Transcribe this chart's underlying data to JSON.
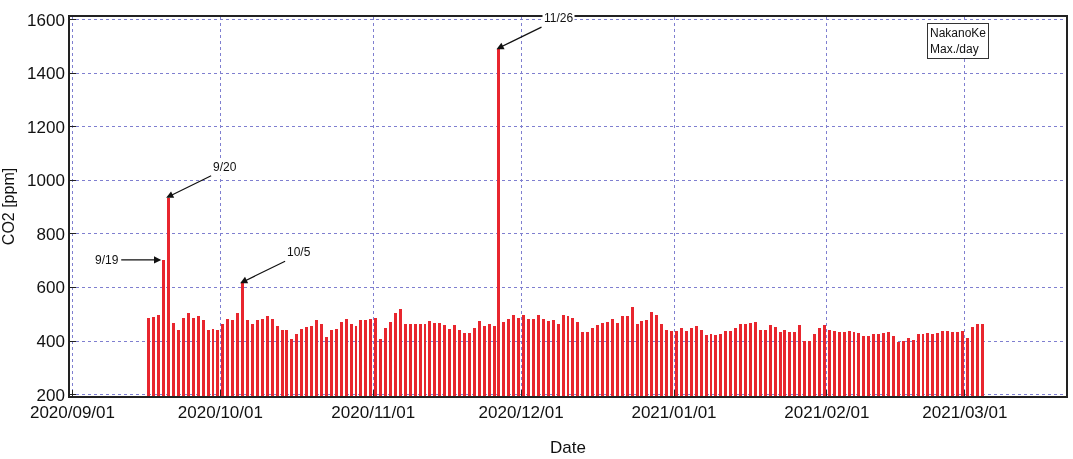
{
  "chart_data": {
    "type": "bar",
    "xlabel": "Date",
    "ylabel": "CO2 [ppm]",
    "x": [
      "2020-09-16",
      "2020-09-17",
      "2020-09-18",
      "2020-09-19",
      "2020-09-20",
      "2020-09-21",
      "2020-09-22",
      "2020-09-23",
      "2020-09-24",
      "2020-09-25",
      "2020-09-26",
      "2020-09-27",
      "2020-09-28",
      "2020-09-29",
      "2020-09-30",
      "2020-10-01",
      "2020-10-02",
      "2020-10-03",
      "2020-10-04",
      "2020-10-05",
      "2020-10-06",
      "2020-10-07",
      "2020-10-08",
      "2020-10-09",
      "2020-10-10",
      "2020-10-11",
      "2020-10-12",
      "2020-10-13",
      "2020-10-14",
      "2020-10-15",
      "2020-10-16",
      "2020-10-17",
      "2020-10-18",
      "2020-10-19",
      "2020-10-20",
      "2020-10-21",
      "2020-10-22",
      "2020-10-23",
      "2020-10-24",
      "2020-10-25",
      "2020-10-26",
      "2020-10-27",
      "2020-10-28",
      "2020-10-29",
      "2020-10-30",
      "2020-10-31",
      "2020-11-01",
      "2020-11-02",
      "2020-11-03",
      "2020-11-04",
      "2020-11-05",
      "2020-11-06",
      "2020-11-07",
      "2020-11-08",
      "2020-11-09",
      "2020-11-10",
      "2020-11-11",
      "2020-11-12",
      "2020-11-13",
      "2020-11-14",
      "2020-11-15",
      "2020-11-16",
      "2020-11-17",
      "2020-11-18",
      "2020-11-19",
      "2020-11-20",
      "2020-11-21",
      "2020-11-22",
      "2020-11-23",
      "2020-11-24",
      "2020-11-25",
      "2020-11-26",
      "2020-11-27",
      "2020-11-28",
      "2020-11-29",
      "2020-11-30",
      "2020-12-01",
      "2020-12-02",
      "2020-12-03",
      "2020-12-04",
      "2020-12-05",
      "2020-12-06",
      "2020-12-07",
      "2020-12-08",
      "2020-12-09",
      "2020-12-10",
      "2020-12-11",
      "2020-12-12",
      "2020-12-13",
      "2020-12-14",
      "2020-12-15",
      "2020-12-16",
      "2020-12-17",
      "2020-12-18",
      "2020-12-19",
      "2020-12-20",
      "2020-12-21",
      "2020-12-22",
      "2020-12-23",
      "2020-12-24",
      "2020-12-25",
      "2020-12-26",
      "2020-12-27",
      "2020-12-28",
      "2020-12-29",
      "2020-12-30",
      "2020-12-31",
      "2021-01-01",
      "2021-01-02",
      "2021-01-03",
      "2021-01-04",
      "2021-01-05",
      "2021-01-06",
      "2021-01-07",
      "2021-01-08",
      "2021-01-09",
      "2021-01-10",
      "2021-01-11",
      "2021-01-12",
      "2021-01-13",
      "2021-01-14",
      "2021-01-15",
      "2021-01-16",
      "2021-01-17",
      "2021-01-18",
      "2021-01-19",
      "2021-01-20",
      "2021-01-21",
      "2021-01-22",
      "2021-01-23",
      "2021-01-24",
      "2021-01-25",
      "2021-01-26",
      "2021-01-27",
      "2021-01-28",
      "2021-01-29",
      "2021-01-30",
      "2021-01-31",
      "2021-02-01",
      "2021-02-02",
      "2021-02-03",
      "2021-02-04",
      "2021-02-05",
      "2021-02-06",
      "2021-02-07",
      "2021-02-08",
      "2021-02-09",
      "2021-02-10",
      "2021-02-11",
      "2021-02-12",
      "2021-02-13",
      "2021-02-14",
      "2021-02-15",
      "2021-02-16",
      "2021-02-17",
      "2021-02-18",
      "2021-02-19",
      "2021-02-20",
      "2021-02-21",
      "2021-02-22",
      "2021-02-23",
      "2021-02-24",
      "2021-02-25",
      "2021-02-26",
      "2021-02-27",
      "2021-02-28",
      "2021-03-01",
      "2021-03-02",
      "2021-03-03",
      "2021-03-04"
    ],
    "values": [
      485,
      489,
      499,
      703,
      935,
      468,
      441,
      485,
      506,
      485,
      495,
      477,
      442,
      447,
      442,
      464,
      483,
      478,
      504,
      616,
      477,
      464,
      477,
      481,
      495,
      481,
      456,
      442,
      442,
      407,
      426,
      447,
      452,
      456,
      477,
      464,
      416,
      442,
      447,
      472,
      483,
      463,
      455,
      478,
      478,
      484,
      488,
      408,
      448,
      470,
      504,
      518,
      465,
      465,
      465,
      465,
      465,
      474,
      469,
      469,
      460,
      447,
      460,
      443,
      430,
      430,
      448,
      474,
      455,
      465,
      458,
      1490,
      470,
      483,
      496,
      488,
      496,
      483,
      483,
      496,
      483,
      474,
      478,
      465,
      499,
      492,
      488,
      473,
      435,
      435,
      448,
      460,
      469,
      473,
      483,
      468,
      492,
      492,
      528,
      465,
      474,
      478,
      509,
      499,
      465,
      442,
      439,
      439,
      448,
      438,
      448,
      457,
      442,
      423,
      425,
      423,
      428,
      438,
      438,
      448,
      464,
      464,
      468,
      473,
      442,
      442,
      460,
      453,
      433,
      443,
      433,
      433,
      460,
      400,
      400,
      428,
      448,
      460,
      443,
      438,
      435,
      435,
      438,
      433,
      430,
      418,
      420,
      425,
      425,
      430,
      433,
      418,
      395,
      400,
      413,
      403,
      428,
      428,
      430,
      428,
      430,
      438,
      438,
      433,
      433,
      438,
      413,
      452,
      464,
      464
    ],
    "color": "#e8262e",
    "xlim": [
      "2020-08-31T12:00",
      "2021-03-21T12:00"
    ],
    "xticks": [
      {
        "value": "2020-09-01",
        "label": "2020/09/01"
      },
      {
        "value": "2020-10-01",
        "label": "2020/10/01"
      },
      {
        "value": "2020-11-01",
        "label": "2020/11/01"
      },
      {
        "value": "2020-12-01",
        "label": "2020/12/01"
      },
      {
        "value": "2021-01-01",
        "label": "2021/01/01"
      },
      {
        "value": "2021-02-01",
        "label": "2021/02/01"
      },
      {
        "value": "2021-03-01",
        "label": "2021/03/01"
      }
    ],
    "ylim": [
      195,
      1610
    ],
    "yticks": [
      200,
      400,
      600,
      800,
      1000,
      1200,
      1400,
      1600
    ],
    "grid": true,
    "annotations": [
      {
        "text": "9/19",
        "x": "2020-09-19",
        "y": 703
      },
      {
        "text": "9/20",
        "x": "2020-09-20",
        "y": 935
      },
      {
        "text": "10/5",
        "x": "2020-10-05",
        "y": 616
      },
      {
        "text": "11/26",
        "x": "2020-11-26",
        "y": 1490
      },
      "NakanoKe\nMax./day"
    ]
  }
}
